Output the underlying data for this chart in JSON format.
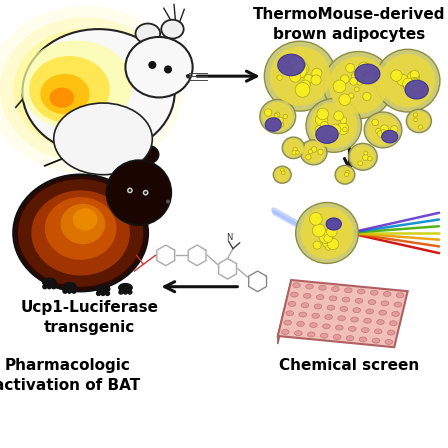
{
  "background_color": "#ffffff",
  "labels": {
    "top_right": "ThermoMouse-derived\nbrown adipocytes",
    "bottom_left": "Pharmacologic\nactivation of BAT",
    "bottom_right": "Chemical screen",
    "top_left": "Ucp1-Luciferase\ntransgenic"
  },
  "label_fontsize": 11,
  "label_fontweight": "bold",
  "arrow_color": "#111111",
  "fig_width": 4.48,
  "fig_height": 4.48,
  "dpi": 100
}
